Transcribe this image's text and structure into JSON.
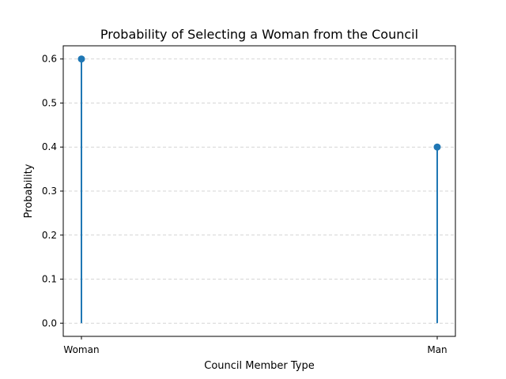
{
  "chart_data": {
    "type": "stem",
    "title": "Probability of Selecting a Woman from the Council",
    "xlabel": "Council Member Type",
    "ylabel": "Probability",
    "categories": [
      "Woman",
      "Man"
    ],
    "values": [
      0.6,
      0.4
    ],
    "ylim": [
      -0.03,
      0.63
    ],
    "yticks": [
      0.0,
      0.1,
      0.2,
      0.3,
      0.4,
      0.5,
      0.6
    ],
    "ytick_labels": [
      "0.0",
      "0.1",
      "0.2",
      "0.3",
      "0.4",
      "0.5",
      "0.6"
    ],
    "grid": "y-dashed",
    "colors": {
      "series": "#1f77b4",
      "grid": "#c8c8c8",
      "axis": "#000000"
    }
  }
}
